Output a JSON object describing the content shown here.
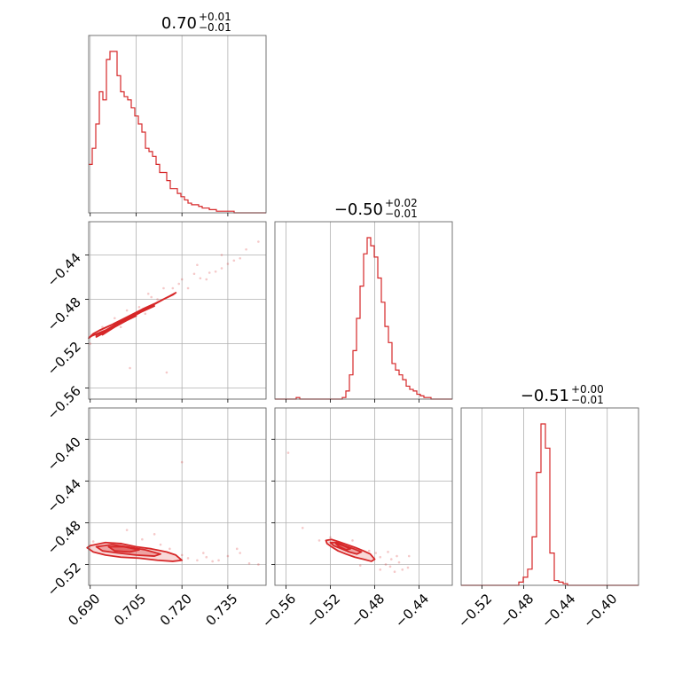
{
  "chart_data": {
    "type": "corner",
    "color": "#d62728",
    "parameters": [
      {
        "id": "p0",
        "range": [
          0.6895,
          0.7475
        ],
        "ticks": [
          0.69,
          0.705,
          0.72,
          0.735
        ],
        "tick_labels": [
          "0.690",
          "0.705",
          "0.720",
          "0.735"
        ]
      },
      {
        "id": "p1",
        "range": [
          -0.57,
          -0.41
        ],
        "ticks": [
          -0.56,
          -0.52,
          -0.48,
          -0.44
        ],
        "tick_labels": [
          "−0.56",
          "−0.52",
          "−0.48",
          "−0.44"
        ]
      },
      {
        "id": "p2",
        "range": [
          -0.54,
          -0.37
        ],
        "ticks": [
          -0.52,
          -0.48,
          -0.44,
          -0.4
        ],
        "tick_labels": [
          "−0.52",
          "−0.48",
          "−0.44",
          "−0.40"
        ]
      }
    ],
    "titles": [
      {
        "value": "0.70",
        "plus": "+0.01",
        "minus": "−0.01"
      },
      {
        "value": "−0.50",
        "plus": "+0.02",
        "minus": "−0.01"
      },
      {
        "value": "−0.51",
        "plus": "+0.00",
        "minus": "−0.01"
      }
    ],
    "histograms": [
      {
        "param": 0,
        "bin_edges_range": [
          0.6895,
          0.7475
        ],
        "bins": 50,
        "counts": [
          30,
          40,
          55,
          75,
          70,
          95,
          100,
          100,
          85,
          75,
          72,
          70,
          65,
          60,
          55,
          50,
          40,
          38,
          35,
          30,
          25,
          25,
          20,
          15,
          15,
          12,
          10,
          8,
          6,
          5,
          5,
          4,
          3,
          3,
          2,
          2,
          1,
          1,
          1,
          1,
          1,
          0,
          0,
          0,
          0,
          0,
          0,
          0,
          0,
          0
        ]
      },
      {
        "param": 1,
        "bin_edges_range": [
          -0.57,
          -0.41
        ],
        "bins": 50,
        "counts": [
          0,
          0,
          0,
          0,
          0,
          0,
          1,
          0,
          0,
          0,
          0,
          0,
          0,
          0,
          0,
          0,
          0,
          0,
          0,
          1,
          5,
          15,
          30,
          50,
          70,
          90,
          100,
          95,
          88,
          75,
          60,
          45,
          35,
          22,
          18,
          15,
          12,
          8,
          6,
          5,
          3,
          2,
          1,
          1,
          0,
          0,
          0,
          0,
          0,
          0
        ]
      },
      {
        "param": 2,
        "bin_edges_range": [
          -0.54,
          -0.37
        ],
        "bins": 40,
        "counts": [
          0,
          0,
          0,
          0,
          0,
          0,
          0,
          0,
          0,
          0,
          0,
          0,
          0,
          2,
          5,
          10,
          30,
          70,
          100,
          85,
          20,
          3,
          2,
          1,
          0,
          0,
          0,
          0,
          0,
          0,
          0,
          0,
          0,
          0,
          0,
          0,
          0,
          0,
          0,
          0
        ]
      }
    ],
    "joint": [
      {
        "x_param": 0,
        "y_param": 1,
        "contour_levels": [
          [
            [
              0.6905,
              -0.513
            ],
            [
              0.695,
              -0.508
            ],
            [
              0.7,
              -0.5
            ],
            [
              0.705,
              -0.493
            ],
            [
              0.71,
              -0.486
            ],
            [
              0.714,
              -0.48
            ],
            [
              0.717,
              -0.476
            ],
            [
              0.718,
              -0.474
            ],
            [
              0.716,
              -0.477
            ],
            [
              0.711,
              -0.484
            ],
            [
              0.707,
              -0.489
            ],
            [
              0.702,
              -0.496
            ],
            [
              0.697,
              -0.503
            ],
            [
              0.693,
              -0.508
            ],
            [
              0.691,
              -0.511
            ],
            [
              0.6895,
              -0.515
            ]
          ],
          [
            [
              0.692,
              -0.514
            ],
            [
              0.696,
              -0.508
            ],
            [
              0.701,
              -0.5
            ],
            [
              0.705,
              -0.494
            ],
            [
              0.709,
              -0.487
            ],
            [
              0.711,
              -0.486
            ],
            [
              0.707,
              -0.491
            ],
            [
              0.703,
              -0.497
            ],
            [
              0.699,
              -0.503
            ],
            [
              0.695,
              -0.509
            ],
            [
              0.692,
              -0.512
            ]
          ],
          [
            [
              0.694,
              -0.512
            ],
            [
              0.698,
              -0.505
            ],
            [
              0.702,
              -0.499
            ],
            [
              0.705,
              -0.495
            ],
            [
              0.703,
              -0.496
            ],
            [
              0.7,
              -0.501
            ],
            [
              0.697,
              -0.506
            ],
            [
              0.695,
              -0.509
            ]
          ]
        ],
        "scatter": [
          [
            0.722,
            -0.47
          ],
          [
            0.728,
            -0.462
          ],
          [
            0.731,
            -0.455
          ],
          [
            0.735,
            -0.448
          ],
          [
            0.719,
            -0.466
          ],
          [
            0.724,
            -0.457
          ],
          [
            0.733,
            -0.452
          ],
          [
            0.739,
            -0.443
          ],
          [
            0.745,
            -0.428
          ],
          [
            0.71,
            -0.478
          ],
          [
            0.714,
            -0.47
          ],
          [
            0.706,
            -0.487
          ],
          [
            0.7,
            -0.505
          ],
          [
            0.698,
            -0.497
          ],
          [
            0.726,
            -0.461
          ],
          [
            0.737,
            -0.445
          ],
          [
            0.741,
            -0.435
          ],
          [
            0.703,
            -0.542
          ],
          [
            0.715,
            -0.546
          ],
          [
            0.729,
            -0.456
          ],
          [
            0.72,
            -0.462
          ],
          [
            0.709,
            -0.475
          ],
          [
            0.702,
            -0.49
          ],
          [
            0.733,
            -0.44
          ],
          [
            0.717,
            -0.47
          ],
          [
            0.712,
            -0.48
          ],
          [
            0.725,
            -0.449
          ],
          [
            0.708,
            -0.493
          ],
          [
            0.69,
            -0.52
          ],
          [
            0.694,
            -0.505
          ]
        ]
      },
      {
        "x_param": 0,
        "y_param": 2,
        "contour_levels": [
          [
            [
              0.69,
              -0.502
            ],
            [
              0.695,
              -0.499
            ],
            [
              0.7,
              -0.5
            ],
            [
              0.705,
              -0.503
            ],
            [
              0.71,
              -0.505
            ],
            [
              0.715,
              -0.508
            ],
            [
              0.718,
              -0.511
            ],
            [
              0.72,
              -0.516
            ],
            [
              0.717,
              -0.517
            ],
            [
              0.712,
              -0.516
            ],
            [
              0.706,
              -0.514
            ],
            [
              0.7,
              -0.513
            ],
            [
              0.695,
              -0.511
            ],
            [
              0.691,
              -0.508
            ],
            [
              0.689,
              -0.504
            ]
          ],
          [
            [
              0.692,
              -0.503
            ],
            [
              0.697,
              -0.501
            ],
            [
              0.702,
              -0.503
            ],
            [
              0.708,
              -0.506
            ],
            [
              0.713,
              -0.51
            ],
            [
              0.711,
              -0.512
            ],
            [
              0.705,
              -0.511
            ],
            [
              0.699,
              -0.509
            ],
            [
              0.694,
              -0.507
            ]
          ],
          [
            [
              0.696,
              -0.503
            ],
            [
              0.701,
              -0.503
            ],
            [
              0.706,
              -0.506
            ],
            [
              0.703,
              -0.508
            ],
            [
              0.698,
              -0.507
            ]
          ]
        ],
        "scatter": [
          [
            0.725,
            -0.516
          ],
          [
            0.732,
            -0.516
          ],
          [
            0.738,
            -0.505
          ],
          [
            0.742,
            -0.519
          ],
          [
            0.735,
            -0.512
          ],
          [
            0.728,
            -0.513
          ],
          [
            0.72,
            -0.511
          ],
          [
            0.702,
            -0.487
          ],
          [
            0.711,
            -0.491
          ],
          [
            0.72,
            -0.422
          ],
          [
            0.739,
            -0.509
          ],
          [
            0.745,
            -0.52
          ],
          [
            0.716,
            -0.505
          ],
          [
            0.722,
            -0.514
          ],
          [
            0.73,
            -0.517
          ],
          [
            0.7,
            -0.5
          ],
          [
            0.691,
            -0.498
          ],
          [
            0.707,
            -0.496
          ],
          [
            0.713,
            -0.501
          ],
          [
            0.727,
            -0.509
          ]
        ]
      },
      {
        "x_param": 1,
        "y_param": 2,
        "contour_levels": [
          [
            [
              -0.524,
              -0.497
            ],
            [
              -0.519,
              -0.496
            ],
            [
              -0.513,
              -0.498
            ],
            [
              -0.505,
              -0.501
            ],
            [
              -0.497,
              -0.504
            ],
            [
              -0.49,
              -0.507
            ],
            [
              -0.484,
              -0.51
            ],
            [
              -0.48,
              -0.515
            ],
            [
              -0.483,
              -0.517
            ],
            [
              -0.49,
              -0.515
            ],
            [
              -0.498,
              -0.513
            ],
            [
              -0.506,
              -0.51
            ],
            [
              -0.513,
              -0.507
            ],
            [
              -0.519,
              -0.503
            ],
            [
              -0.523,
              -0.5
            ]
          ],
          [
            [
              -0.52,
              -0.499
            ],
            [
              -0.514,
              -0.499
            ],
            [
              -0.507,
              -0.502
            ],
            [
              -0.499,
              -0.505
            ],
            [
              -0.492,
              -0.508
            ],
            [
              -0.496,
              -0.51
            ],
            [
              -0.503,
              -0.508
            ],
            [
              -0.51,
              -0.505
            ],
            [
              -0.517,
              -0.502
            ]
          ],
          [
            [
              -0.515,
              -0.5
            ],
            [
              -0.508,
              -0.502
            ],
            [
              -0.502,
              -0.505
            ],
            [
              -0.506,
              -0.506
            ],
            [
              -0.512,
              -0.503
            ]
          ]
        ],
        "scatter": [
          [
            -0.47,
            -0.52
          ],
          [
            -0.465,
            -0.515
          ],
          [
            -0.46,
            -0.512
          ],
          [
            -0.455,
            -0.525
          ],
          [
            -0.475,
            -0.513
          ],
          [
            -0.466,
            -0.522
          ],
          [
            -0.458,
            -0.518
          ],
          [
            -0.45,
            -0.523
          ],
          [
            -0.449,
            -0.512
          ],
          [
            -0.479,
            -0.509
          ],
          [
            -0.485,
            -0.507
          ],
          [
            -0.493,
            -0.521
          ],
          [
            -0.53,
            -0.497
          ],
          [
            -0.545,
            -0.485
          ],
          [
            -0.558,
            -0.413
          ],
          [
            -0.52,
            -0.494
          ],
          [
            -0.5,
            -0.497
          ],
          [
            -0.468,
            -0.508
          ],
          [
            -0.462,
            -0.527
          ],
          [
            -0.475,
            -0.525
          ]
        ]
      }
    ]
  }
}
